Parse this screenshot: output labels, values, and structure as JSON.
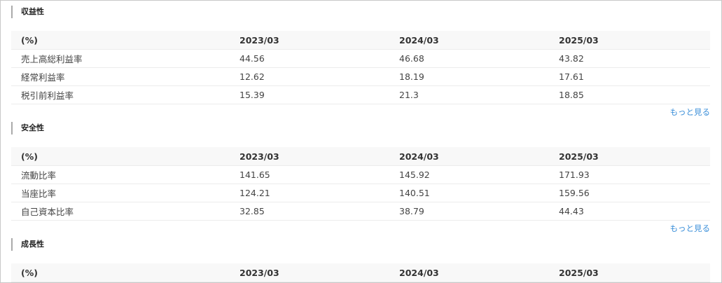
{
  "sections": [
    {
      "title": "収益性",
      "header": [
        "(%)",
        "2023/03",
        "2024/03",
        "2025/03"
      ],
      "rows": [
        [
          "売上高総利益率",
          "44.56",
          "46.68",
          "43.82"
        ],
        [
          "経常利益率",
          "12.62",
          "18.19",
          "17.61"
        ],
        [
          "税引前利益率",
          "15.39",
          "21.3",
          "18.85"
        ]
      ],
      "more": "もっと見る"
    },
    {
      "title": "安全性",
      "header": [
        "(%)",
        "2023/03",
        "2024/03",
        "2025/03"
      ],
      "rows": [
        [
          "流動比率",
          "141.65",
          "145.92",
          "171.93"
        ],
        [
          "当座比率",
          "124.21",
          "140.51",
          "159.56"
        ],
        [
          "自己資本比率",
          "32.85",
          "38.79",
          "44.43"
        ]
      ],
      "more": "もっと見る"
    },
    {
      "title": "成長性",
      "header": [
        "(%)",
        "2023/03",
        "2024/03",
        "2025/03"
      ],
      "rows": []
    }
  ],
  "colors": {
    "link": "#3b8fd9",
    "header_bg": "#f8f8f8"
  }
}
